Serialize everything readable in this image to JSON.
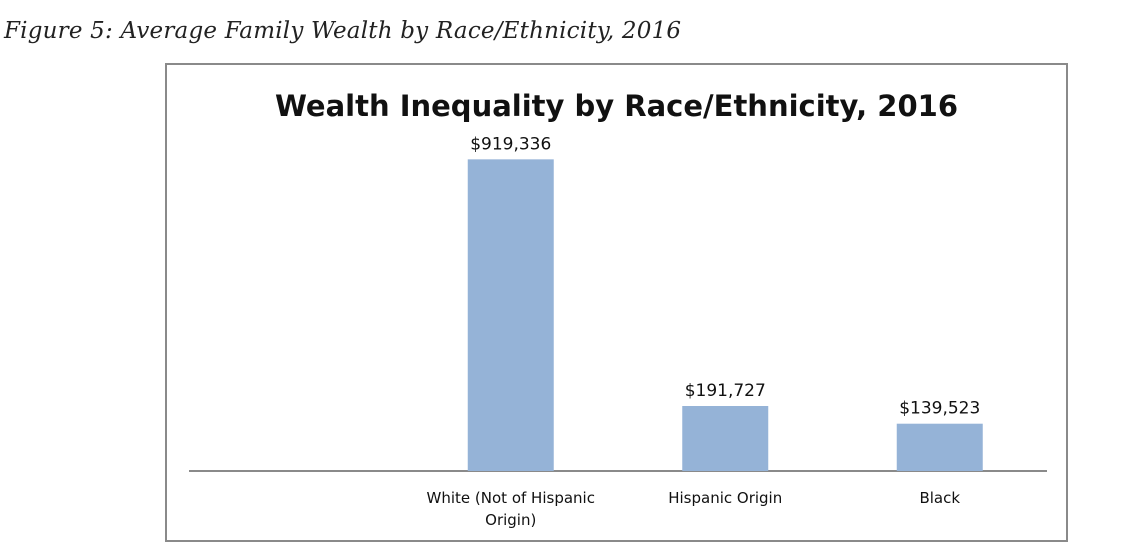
{
  "figure_caption": "Figure 5: Average Family Wealth by Race/Ethnicity, 2016",
  "chart_data": {
    "type": "bar",
    "title": "Wealth Inequality by Race/Ethnicity, 2016",
    "categories": [
      "",
      "White (Not of Hispanic Origin)",
      "Hispanic Origin",
      "Black"
    ],
    "category_lines": [
      [],
      [
        "White (Not of Hispanic",
        "Origin)"
      ],
      [
        "Hispanic Origin"
      ],
      [
        "Black"
      ]
    ],
    "values": [
      null,
      919336,
      191727,
      139523
    ],
    "data_labels": [
      "",
      "$919,336",
      "$191,727",
      "$139,523"
    ],
    "xlabel": "",
    "ylabel": "",
    "ylim": [
      0,
      1000000
    ],
    "grid": false,
    "legend": "none",
    "colors": {
      "bar": "#95b3d7",
      "axis": "#8a8a8a",
      "frame": "#8a8a8a"
    }
  }
}
